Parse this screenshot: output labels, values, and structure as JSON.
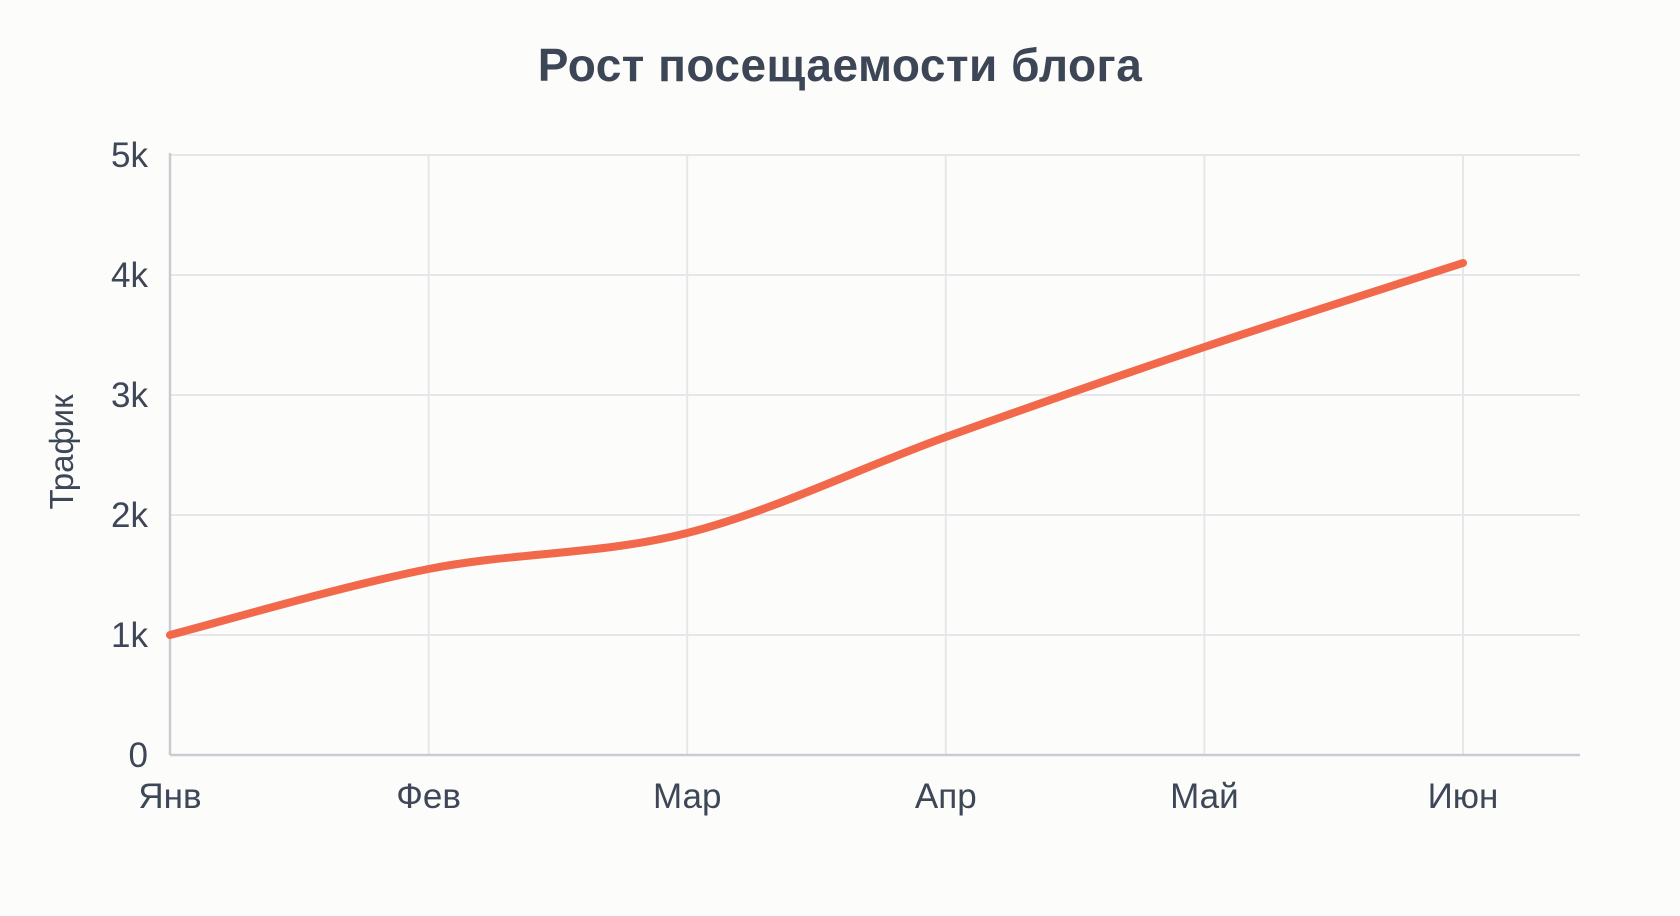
{
  "chart_data": {
    "type": "line",
    "title": "Рост посещаемости блога",
    "ylabel": "Трафик",
    "xlabel": "",
    "categories": [
      "Янв",
      "Фев",
      "Мар",
      "Апр",
      "Май",
      "Июн"
    ],
    "series": [
      {
        "name": "Трафик",
        "values": [
          1000,
          1550,
          1850,
          2650,
          3400,
          4100
        ]
      }
    ],
    "ylim": [
      0,
      5000
    ],
    "yticks": [
      0,
      1000,
      2000,
      3000,
      4000,
      5000
    ],
    "ytick_labels": [
      "0",
      "1k",
      "2k",
      "3k",
      "4k",
      "5k"
    ],
    "grid": true,
    "legend": false,
    "line_color": "#F2684B",
    "colors": {
      "title": "#3D4656",
      "tick": "#3E4757",
      "grid": "#E5E7EA",
      "axis": "#C8CCD2"
    }
  }
}
